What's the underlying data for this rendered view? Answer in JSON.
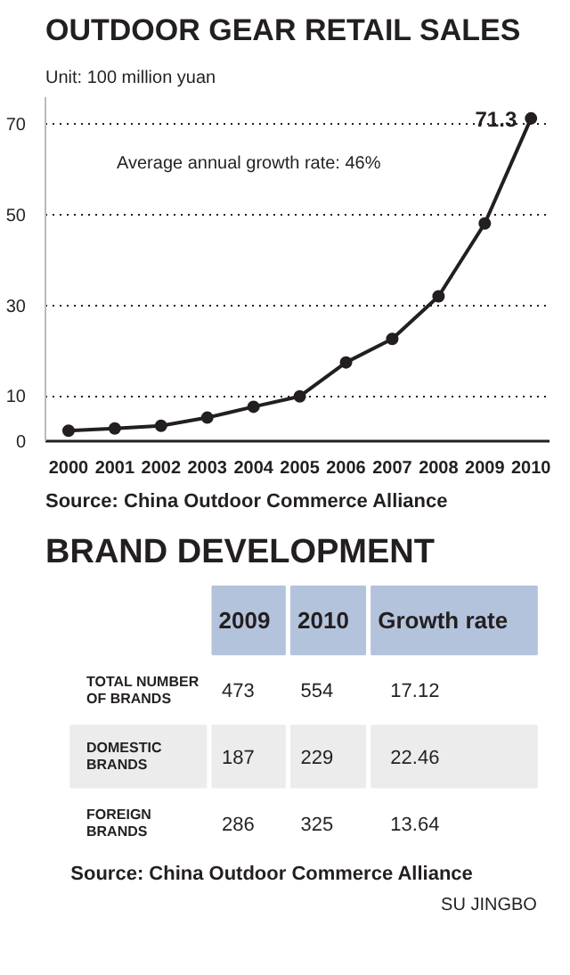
{
  "chart_data": [
    {
      "type": "line",
      "title": "OUTDOOR GEAR RETAIL SALES",
      "subtitle": "Unit: 100 million yuan",
      "x": [
        2000,
        2001,
        2002,
        2003,
        2004,
        2005,
        2006,
        2007,
        2008,
        2009,
        2010
      ],
      "series": [
        {
          "color": "#231f20",
          "values": [
            2.3,
            2.8,
            3.4,
            5.2,
            7.6,
            9.9,
            17.4,
            22.6,
            32,
            48.1,
            71.3
          ],
          "value_labels": [
            null,
            null,
            null,
            null,
            null,
            null,
            null,
            null,
            null,
            null,
            "71.3"
          ]
        }
      ],
      "xlim": [
        1999.5,
        2010.4
      ],
      "xticks": [
        2000,
        2001,
        2002,
        2003,
        2004,
        2005,
        2006,
        2007,
        2008,
        2009,
        2010
      ],
      "ylim": [
        0,
        76
      ],
      "yticks": [
        0,
        10,
        30,
        50,
        70
      ],
      "grid": "y",
      "marker": "circle",
      "line_style": "solid",
      "annotations": [
        "Average annual growth rate: 46%",
        "Source: China Outdoor Commerce Alliance"
      ]
    },
    {
      "type": "other",
      "title": "BRAND DEVELOPMENT",
      "categories": [
        "2009",
        "2010",
        "Growth rate"
      ],
      "y_categories": [
        "TOTAL NUMBER OF BRANDS",
        "DOMESTIC BRANDS",
        "FOREIGN BRANDS"
      ],
      "cell_labels": [
        [
          "473",
          "554",
          "17.12"
        ],
        [
          "187",
          "229",
          "22.46"
        ],
        [
          "286",
          "325",
          "13.64"
        ]
      ],
      "annotations": [
        "Source: China Outdoor Commerce Alliance",
        "SU JINGBO"
      ]
    }
  ]
}
